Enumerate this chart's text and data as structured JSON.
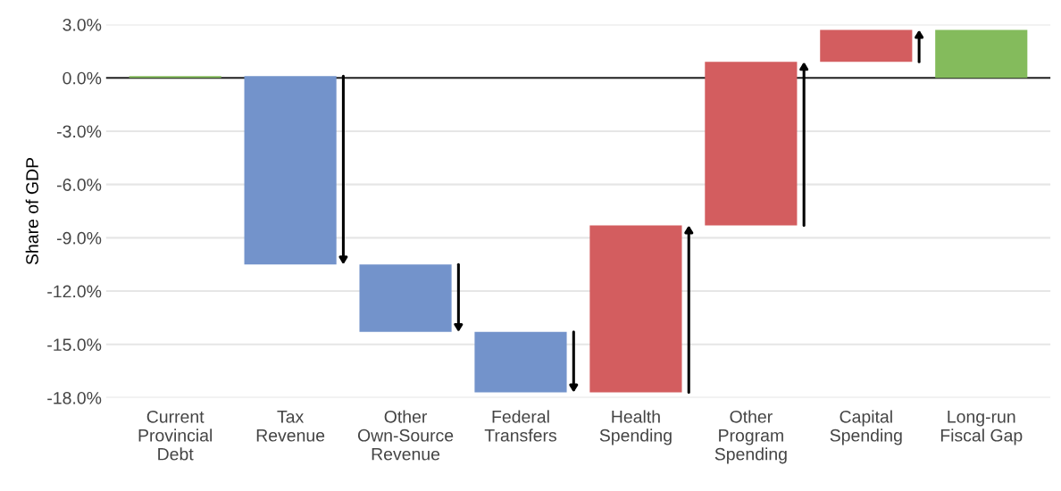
{
  "chart_data": {
    "type": "bar",
    "ylabel": "Share of GDP",
    "categories": [
      "Current\nProvincial\nDebt",
      "Tax\nRevenue",
      "Other\nOwn-Source\nRevenue",
      "Federal\nTransfers",
      "Health\nSpending",
      "Other\nProgram\nSpending",
      "Capital\nSpending",
      "Long-run\nFiscal Gap"
    ],
    "values": [
      0.1,
      -10.6,
      -3.8,
      -3.4,
      9.4,
      9.2,
      1.8,
      2.7
    ],
    "base": [
      0,
      0.1,
      -10.5,
      -14.3,
      -17.7,
      -8.3,
      0.9,
      0
    ],
    "colors": [
      "#84bb5c",
      "#7393cb",
      "#7393cb",
      "#7393cb",
      "#d35d5f",
      "#d35d5f",
      "#d35d5f",
      "#84bb5c"
    ],
    "ylim": [
      -18,
      3
    ],
    "yticks": [
      {
        "value": 3,
        "label": "3.0%"
      },
      {
        "value": 0,
        "label": "0.0%"
      },
      {
        "value": -3,
        "label": "-3.0%"
      },
      {
        "value": -6,
        "label": "-6.0%"
      },
      {
        "value": -9,
        "label": "-9.0%"
      },
      {
        "value": -12,
        "label": "-12.0%"
      },
      {
        "value": -15,
        "label": "-15.0%"
      },
      {
        "value": -18,
        "label": "-18.0%"
      }
    ],
    "grid": "y",
    "ref_lines": [
      {
        "axis": "y",
        "value": 0,
        "color": "#222222"
      }
    ]
  }
}
